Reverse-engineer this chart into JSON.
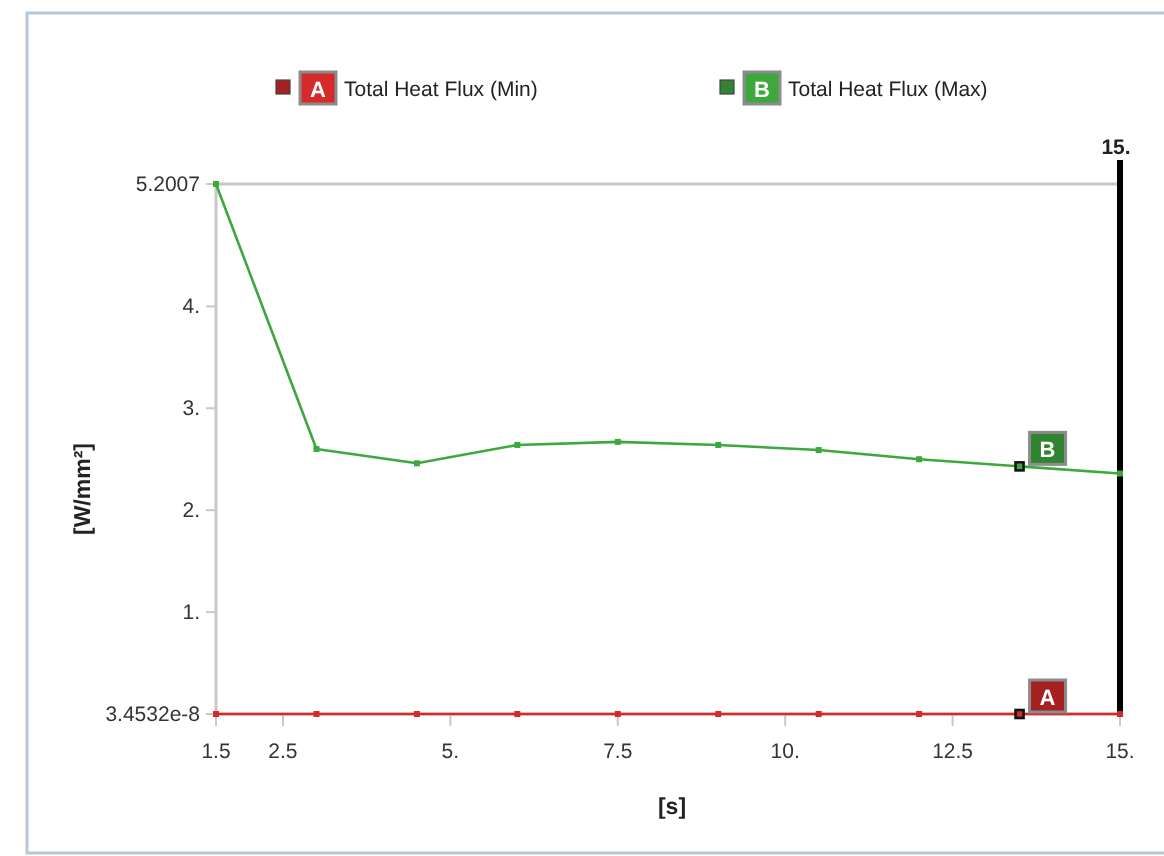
{
  "chart_data": {
    "type": "line",
    "xlabel": "[s]",
    "ylabel": "[W/mm²]",
    "x": [
      1.5,
      3,
      4.5,
      6,
      7.5,
      9,
      10.5,
      12,
      13.5,
      15
    ],
    "series": [
      {
        "name": "Total Heat Flux (Min)",
        "color": "#d42a2a",
        "values": [
          3.4532e-08,
          3.4532e-08,
          3.4532e-08,
          3.4532e-08,
          3.4532e-08,
          3.4532e-08,
          3.4532e-08,
          3.4532e-08,
          3.4532e-08,
          3.4532e-08
        ]
      },
      {
        "name": "Total Heat Flux (Max)",
        "color": "#3da83d",
        "values": [
          5.2007,
          2.6,
          2.46,
          2.64,
          2.67,
          2.64,
          2.59,
          2.5,
          2.43,
          2.36
        ]
      }
    ],
    "xlim": [
      1.5,
      15
    ],
    "xticks": [
      1.5,
      2.5,
      {
        "value": 5,
        "label": "5."
      },
      7.5,
      {
        "value": 10,
        "label": "10."
      },
      12.5,
      {
        "value": 15,
        "label": "15."
      }
    ],
    "ylim": [
      3.4532e-08,
      5.2007
    ],
    "yticks": [
      {
        "value": 3.4532e-08,
        "label": "3.4532e-8"
      },
      {
        "value": 1,
        "label": "1."
      },
      {
        "value": 2,
        "label": "2."
      },
      {
        "value": 3,
        "label": "3."
      },
      {
        "value": 4,
        "label": "4."
      },
      5.2007
    ],
    "ref_lines": [
      {
        "axis": "x",
        "value": 15,
        "label": "15.",
        "color": "#000000"
      }
    ],
    "annotations": [
      {
        "text": "A",
        "x": 13.5,
        "y": 3.4532e-08
      },
      {
        "text": "B",
        "x": 13.5,
        "y": 2.43
      }
    ],
    "legend": "top",
    "marker": "square",
    "line_style": "solid"
  }
}
